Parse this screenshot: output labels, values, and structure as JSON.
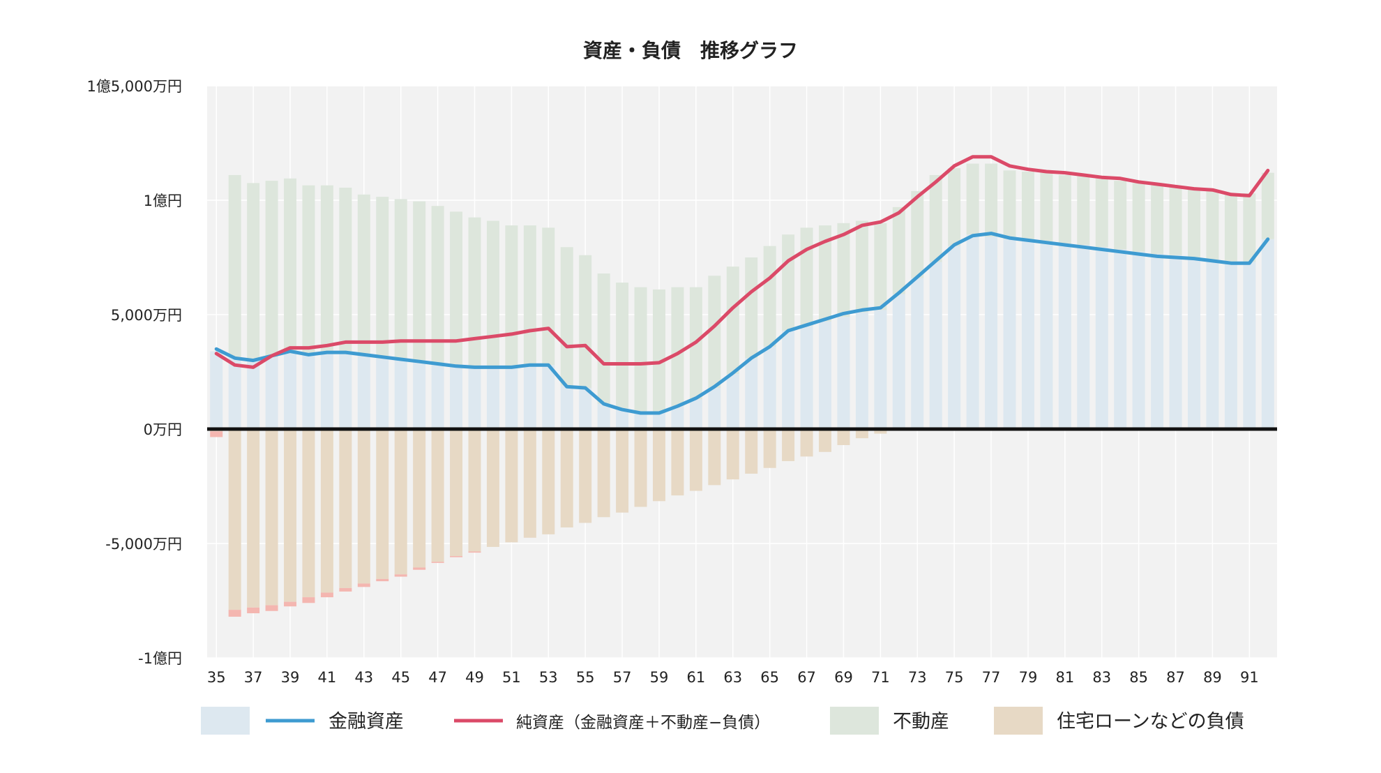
{
  "chart_data": {
    "type": "bar",
    "title": "資産・負債　推移グラフ",
    "xlabel": "",
    "ylabel": "",
    "unit": "万円",
    "ylim": [
      -10000,
      15000
    ],
    "yticks": [
      15000,
      10000,
      5000,
      0,
      -5000,
      -10000
    ],
    "ytick_labels": [
      "1億5,000万円",
      "1億円",
      "5,000万円",
      "0万円",
      "-5,000万円",
      "-1億円"
    ],
    "x": [
      35,
      36,
      37,
      38,
      39,
      40,
      41,
      42,
      43,
      44,
      45,
      46,
      47,
      48,
      49,
      50,
      51,
      52,
      53,
      54,
      55,
      56,
      57,
      58,
      59,
      60,
      61,
      62,
      63,
      64,
      65,
      66,
      67,
      68,
      69,
      70,
      71,
      72,
      73,
      74,
      75,
      76,
      77,
      78,
      79,
      80,
      81,
      82,
      83,
      84,
      85,
      86,
      87,
      88,
      89,
      90,
      91,
      92
    ],
    "xtick_labels": [
      "35",
      "37",
      "39",
      "41",
      "43",
      "45",
      "47",
      "49",
      "51",
      "53",
      "55",
      "57",
      "59",
      "61",
      "63",
      "65",
      "67",
      "69",
      "71",
      "73",
      "75",
      "77",
      "79",
      "81",
      "83",
      "85",
      "87",
      "89",
      "91"
    ],
    "grid": true,
    "zero_line": true,
    "legend_position": "bottom",
    "series": [
      {
        "key": "financial_bar",
        "kind": "bar",
        "legend_ref": "financial",
        "color": "#dde8f0",
        "values": [
          3400,
          3150,
          3000,
          3150,
          3400,
          3300,
          3400,
          3400,
          3300,
          3200,
          3100,
          3000,
          2900,
          2800,
          2700,
          2700,
          2700,
          2800,
          2800,
          1900,
          1800,
          1100,
          900,
          700,
          700,
          1000,
          1300,
          1800,
          2400,
          3100,
          3600,
          4300,
          4500,
          4700,
          4900,
          5100,
          5200,
          5900,
          6600,
          7300,
          8000,
          8500,
          8400,
          8300,
          8250,
          8200,
          8100,
          8050,
          7950,
          7850,
          7750,
          7650,
          7600,
          7500,
          7400,
          7300,
          7300,
          8300
        ]
      },
      {
        "key": "real_estate_bar",
        "kind": "bar",
        "legend_ref": "real_estate",
        "color": "#dde6dc",
        "values": [
          0,
          7950,
          7750,
          7700,
          7550,
          7350,
          7250,
          7150,
          6950,
          6950,
          6950,
          6950,
          6850,
          6700,
          6550,
          6400,
          6200,
          6100,
          6000,
          6050,
          5800,
          5700,
          5500,
          5500,
          5400,
          5200,
          4900,
          4900,
          4700,
          4400,
          4400,
          4200,
          4300,
          4200,
          4100,
          4000,
          3800,
          3800,
          3800,
          3800,
          3400,
          3100,
          3200,
          3000,
          3000,
          3000,
          3000,
          3000,
          3000,
          3000,
          3000,
          3000,
          3000,
          3000,
          3000,
          3000,
          3000,
          2900
        ]
      },
      {
        "key": "loan_bar",
        "kind": "bar",
        "legend_ref": "loan",
        "color": "#e7d9c5",
        "values": [
          -100,
          -7900,
          -7800,
          -7700,
          -7550,
          -7350,
          -7150,
          -6950,
          -6750,
          -6550,
          -6350,
          -6050,
          -5800,
          -5550,
          -5350,
          -5150,
          -4950,
          -4750,
          -4600,
          -4300,
          -4100,
          -3850,
          -3650,
          -3400,
          -3150,
          -2900,
          -2700,
          -2450,
          -2200,
          -1950,
          -1700,
          -1400,
          -1200,
          -1000,
          -700,
          -400,
          -200,
          0,
          0,
          0,
          0,
          0,
          0,
          0,
          0,
          0,
          0,
          0,
          0,
          0,
          0,
          0,
          0,
          0,
          0,
          0,
          0,
          0
        ]
      },
      {
        "key": "loan_extra_bar",
        "kind": "bar",
        "color": "#f4b6b0",
        "values": [
          -250,
          -300,
          -250,
          -250,
          -200,
          -250,
          -200,
          -150,
          -150,
          -100,
          -100,
          -100,
          -50,
          -50,
          -50,
          0,
          0,
          0,
          0,
          0,
          0,
          0,
          0,
          0,
          0,
          0,
          0,
          0,
          0,
          0,
          0,
          0,
          0,
          0,
          0,
          0,
          0,
          0,
          0,
          0,
          0,
          0,
          0,
          0,
          0,
          0,
          0,
          0,
          0,
          0,
          0,
          0,
          0,
          0,
          0,
          0,
          0,
          0
        ]
      },
      {
        "key": "financial_line",
        "kind": "line",
        "legend_ref": "financial",
        "color": "#3e9bd1",
        "values": [
          3500,
          3100,
          3000,
          3200,
          3400,
          3250,
          3350,
          3350,
          3250,
          3150,
          3050,
          2950,
          2850,
          2750,
          2700,
          2700,
          2700,
          2800,
          2800,
          1850,
          1800,
          1100,
          850,
          700,
          700,
          1000,
          1350,
          1850,
          2450,
          3100,
          3600,
          4300,
          4550,
          4800,
          5050,
          5200,
          5300,
          5950,
          6650,
          7350,
          8050,
          8450,
          8550,
          8350,
          8250,
          8150,
          8050,
          7950,
          7850,
          7750,
          7650,
          7550,
          7500,
          7450,
          7350,
          7250,
          7250,
          8300
        ]
      },
      {
        "key": "net_line",
        "kind": "line",
        "legend_ref": "net",
        "color": "#db4a68",
        "values": [
          3300,
          2800,
          2700,
          3200,
          3550,
          3550,
          3650,
          3800,
          3800,
          3800,
          3850,
          3850,
          3850,
          3850,
          3950,
          4050,
          4150,
          4300,
          4400,
          3600,
          3650,
          2850,
          2850,
          2850,
          2900,
          3300,
          3800,
          4500,
          5300,
          6000,
          6600,
          7350,
          7850,
          8200,
          8500,
          8900,
          9050,
          9450,
          10150,
          10800,
          11500,
          11900,
          11900,
          11500,
          11350,
          11250,
          11200,
          11100,
          11000,
          10950,
          10800,
          10700,
          10600,
          10500,
          10450,
          10250,
          10200,
          11300
        ]
      }
    ]
  },
  "legend": {
    "items": [
      {
        "key": "financial",
        "label": "金融資産",
        "swatch_color": "#dde8f0",
        "line_color": "#3e9bd1"
      },
      {
        "key": "net",
        "label": "純資産（金融資産＋不動産−負債）",
        "line_color": "#db4a68"
      },
      {
        "key": "real_estate",
        "label": "不動産",
        "swatch_color": "#dde6dc"
      },
      {
        "key": "loan",
        "label": "住宅ローンなどの負債",
        "swatch_color": "#e7d9c5"
      }
    ]
  },
  "colors": {
    "plot_background": "#f2f2f2",
    "gridline": "#ffffff",
    "zero_line": "#111111",
    "text": "#222222"
  }
}
